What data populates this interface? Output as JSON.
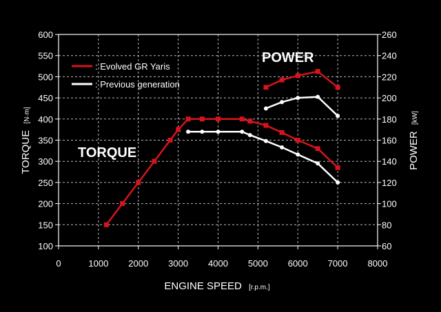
{
  "chart_data": {
    "type": "line",
    "left_axis": {
      "label": "TORQUE",
      "unit": "[N·m]",
      "ylim": [
        100,
        600
      ],
      "ticks": [
        100,
        150,
        200,
        250,
        300,
        350,
        400,
        450,
        500,
        550,
        600
      ]
    },
    "right_axis": {
      "label": "POWER",
      "unit": "[kW]",
      "ylim": [
        60,
        260
      ],
      "ticks": [
        60,
        80,
        100,
        120,
        140,
        160,
        180,
        200,
        220,
        240,
        260
      ]
    },
    "x_axis": {
      "label": "ENGINE SPEED",
      "unit": "[r.p.m.]",
      "xlim": [
        0,
        8000
      ],
      "ticks": [
        0,
        1000,
        2000,
        3000,
        4000,
        5000,
        6000,
        7000,
        8000
      ]
    },
    "grid": true,
    "annotations": {
      "power": "POWER",
      "torque": "TORQUE"
    },
    "legend": {
      "placement": "top-left",
      "items": [
        {
          "label": ": Evolved GR Yaris",
          "color": "#d7141e"
        },
        {
          "label": ": Previous generation",
          "color": "#ffffff"
        }
      ]
    },
    "series": [
      {
        "name": ": Evolved GR Yaris",
        "quantity": "torque",
        "axis": "left",
        "color": "#d7141e",
        "marker": "square",
        "points": [
          [
            1200,
            150
          ],
          [
            1600,
            200
          ],
          [
            2000,
            250
          ],
          [
            2400,
            300
          ],
          [
            2800,
            350
          ],
          [
            3000,
            375
          ],
          [
            3250,
            400
          ],
          [
            3600,
            400
          ],
          [
            4000,
            400
          ],
          [
            4600,
            400
          ],
          [
            4800,
            395
          ],
          [
            5200,
            385
          ],
          [
            5600,
            368
          ],
          [
            6000,
            350
          ],
          [
            6500,
            330
          ],
          [
            7000,
            285
          ]
        ]
      },
      {
        "name": ": Previous generation",
        "quantity": "torque",
        "axis": "left",
        "color": "#ffffff",
        "marker": "circle",
        "points": [
          [
            3250,
            370
          ],
          [
            3600,
            370
          ],
          [
            4000,
            370
          ],
          [
            4600,
            370
          ],
          [
            4800,
            362
          ],
          [
            5200,
            348
          ],
          [
            5600,
            333
          ],
          [
            6000,
            316
          ],
          [
            6500,
            295
          ],
          [
            7000,
            250
          ]
        ]
      },
      {
        "name": ": Evolved GR Yaris",
        "quantity": "power",
        "axis": "right",
        "color": "#d7141e",
        "marker": "square",
        "points": [
          [
            5200,
            210
          ],
          [
            5600,
            217
          ],
          [
            6000,
            221
          ],
          [
            6500,
            225
          ],
          [
            7000,
            210
          ]
        ]
      },
      {
        "name": ": Previous generation",
        "quantity": "power",
        "axis": "right",
        "color": "#ffffff",
        "marker": "circle",
        "points": [
          [
            5200,
            190
          ],
          [
            5600,
            196
          ],
          [
            6000,
            200
          ],
          [
            6500,
            201
          ],
          [
            7000,
            183
          ]
        ]
      }
    ]
  }
}
